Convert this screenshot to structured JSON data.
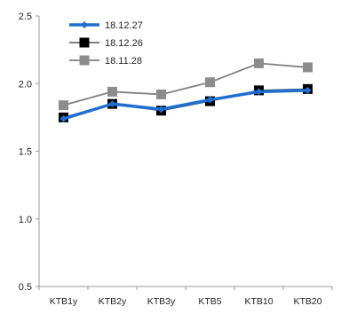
{
  "chart_data": {
    "type": "line",
    "categories": [
      "KTB1y",
      "KTB2y",
      "KTB3y",
      "KTB5",
      "KTB10",
      "KTB20"
    ],
    "ylim": [
      0.5,
      2.5
    ],
    "yticks": [
      "0.5",
      "1.0",
      "1.5",
      "2.0",
      "2.5"
    ],
    "grid": false,
    "legend_position": "top-left",
    "series": [
      {
        "name": "18.12.27",
        "values": [
          1.74,
          1.85,
          1.81,
          1.88,
          1.94,
          1.95
        ],
        "color": "#1F6FD1",
        "marker": "diamond",
        "marker_color": "#1F6FD1"
      },
      {
        "name": "18.12.26",
        "values": [
          1.75,
          1.85,
          1.8,
          1.87,
          1.95,
          1.96
        ],
        "color": "#555555",
        "marker": "square",
        "marker_color": "#000000"
      },
      {
        "name": "18.11.28",
        "values": [
          1.84,
          1.94,
          1.92,
          2.01,
          2.15,
          2.12
        ],
        "color": "#808080",
        "marker": "square",
        "marker_color": "#8C8C8C"
      }
    ]
  }
}
